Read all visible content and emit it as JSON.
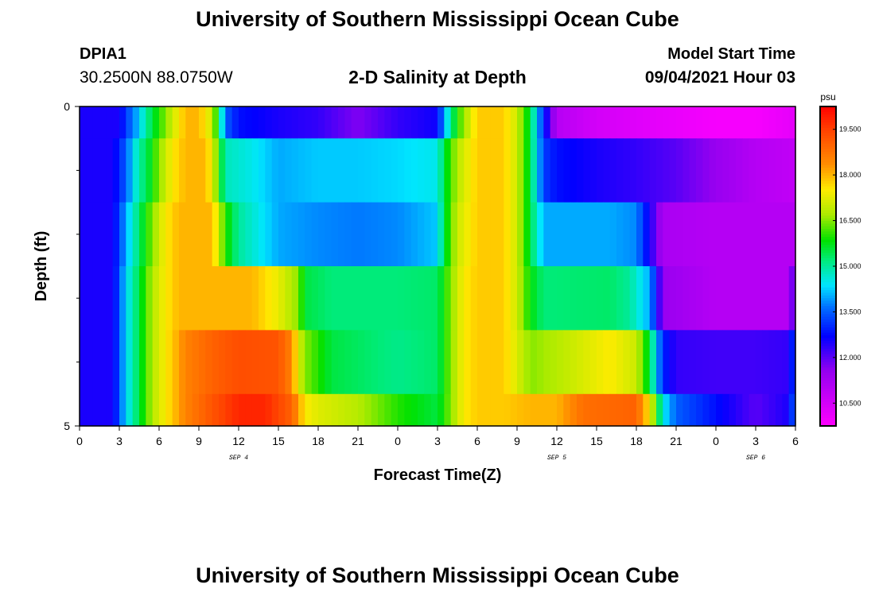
{
  "header": {
    "title": "University of Southern Mississippi Ocean Cube",
    "footer_title": "University of Southern Mississippi Ocean Cube",
    "station": "DPIA1",
    "coordinates": "30.2500N  88.0750W",
    "model_start_label": "Model Start Time",
    "model_start_value": "09/04/2021 Hour 03"
  },
  "chart_data": {
    "type": "heatmap",
    "title": "2-D Salinity at Depth",
    "xlabel": "Forecast Time(Z)",
    "ylabel": "Depth (ft)",
    "x_unit": "hours since 09/04/2021 00Z",
    "xlim": [
      0,
      54
    ],
    "ylim": [
      0,
      5
    ],
    "y_tick_labels": [
      {
        "value": 0,
        "label": "0"
      },
      {
        "value": 5,
        "label": "5"
      }
    ],
    "y_minor_ticks": [
      1,
      2,
      3,
      4
    ],
    "x_ticks": [
      0,
      3,
      6,
      9,
      12,
      15,
      18,
      21,
      24,
      27,
      30,
      33,
      36,
      39,
      42,
      45,
      48,
      51,
      54
    ],
    "x_tick_labels": [
      "0",
      "3",
      "6",
      "9",
      "12",
      "15",
      "18",
      "21",
      "0",
      "3",
      "6",
      "9",
      "12",
      "15",
      "18",
      "21",
      "0",
      "3",
      "6"
    ],
    "date_labels": [
      {
        "x": 12,
        "label": "SEP 4"
      },
      {
        "x": 36,
        "label": "SEP 5"
      },
      {
        "x": 51,
        "label": "SEP 6"
      }
    ],
    "colorbar": {
      "unit": "psu",
      "min": 9.75,
      "max": 20.25,
      "ticks": [
        10.5,
        12.0,
        13.5,
        15.0,
        16.5,
        18.0,
        19.5
      ],
      "tick_labels": [
        "10.500",
        "12.000",
        "13.500",
        "15.000",
        "16.500",
        "18.000",
        "19.500"
      ]
    },
    "layers": [
      {
        "depth_range": [
          0.0,
          0.5
        ],
        "values": [
          [
            0,
            12.5
          ],
          [
            1,
            12.5
          ],
          [
            3,
            12.5
          ],
          [
            3.5,
            13.2
          ],
          [
            4.5,
            14.2
          ],
          [
            5,
            15
          ],
          [
            6,
            16
          ],
          [
            7,
            17
          ],
          [
            8,
            18
          ],
          [
            9,
            18
          ],
          [
            10,
            17
          ],
          [
            10.5,
            15.5
          ],
          [
            11,
            13.5
          ],
          [
            12,
            12.8
          ],
          [
            15,
            12.5
          ],
          [
            18,
            12.3
          ],
          [
            21,
            11.7
          ],
          [
            24,
            12.3
          ],
          [
            27,
            12.6
          ],
          [
            27.5,
            14
          ],
          [
            28.5,
            16
          ],
          [
            30,
            17.8
          ],
          [
            32,
            17.8
          ],
          [
            33,
            17
          ],
          [
            34,
            15.5
          ],
          [
            35,
            13
          ],
          [
            36,
            11
          ],
          [
            39,
            10.5
          ],
          [
            42,
            10.3
          ],
          [
            45,
            10.1
          ],
          [
            48,
            9.9
          ],
          [
            51,
            9.9
          ],
          [
            54,
            10.2
          ]
        ]
      },
      {
        "depth_range": [
          0.5,
          1.5
        ],
        "values": [
          [
            0,
            12.5
          ],
          [
            2.5,
            12.5
          ],
          [
            3.5,
            13.5
          ],
          [
            4.5,
            15
          ],
          [
            5,
            15.3
          ],
          [
            6,
            16.5
          ],
          [
            7,
            17.5
          ],
          [
            8,
            18
          ],
          [
            9.5,
            18
          ],
          [
            10,
            17.3
          ],
          [
            10.5,
            16
          ],
          [
            11,
            14.8
          ],
          [
            13,
            14.5
          ],
          [
            15,
            14
          ],
          [
            18,
            14.2
          ],
          [
            21,
            14.2
          ],
          [
            24,
            14.3
          ],
          [
            27,
            14.5
          ],
          [
            27.5,
            15.5
          ],
          [
            28.5,
            16.8
          ],
          [
            30,
            17.8
          ],
          [
            32,
            17.8
          ],
          [
            33,
            17
          ],
          [
            34,
            15.5
          ],
          [
            35,
            13.2
          ],
          [
            36,
            12.8
          ],
          [
            39,
            12.5
          ],
          [
            42,
            12.3
          ],
          [
            45,
            12
          ],
          [
            48,
            11.5
          ],
          [
            51,
            11
          ],
          [
            54,
            10.8
          ]
        ]
      },
      {
        "depth_range": [
          1.5,
          2.5
        ],
        "values": [
          [
            0,
            12.5
          ],
          [
            2.5,
            12.5
          ],
          [
            3.5,
            14
          ],
          [
            4.5,
            15.3
          ],
          [
            5.5,
            16.5
          ],
          [
            6.5,
            17.5
          ],
          [
            7.5,
            18
          ],
          [
            10,
            18
          ],
          [
            10.5,
            17
          ],
          [
            11,
            16
          ],
          [
            12,
            15
          ],
          [
            15,
            14
          ],
          [
            18,
            13.8
          ],
          [
            21,
            13.7
          ],
          [
            24,
            13.8
          ],
          [
            27,
            14.2
          ],
          [
            27.5,
            15.5
          ],
          [
            28.5,
            17
          ],
          [
            30,
            17.8
          ],
          [
            32,
            17.8
          ],
          [
            33,
            17
          ],
          [
            34,
            15.5
          ],
          [
            35,
            14
          ],
          [
            40,
            14
          ],
          [
            42,
            13.8
          ],
          [
            43,
            12.5
          ],
          [
            44,
            11.2
          ],
          [
            48,
            11
          ],
          [
            51,
            11
          ],
          [
            54,
            11
          ]
        ]
      },
      {
        "depth_range": [
          2.5,
          3.5
        ],
        "values": [
          [
            0,
            12.5
          ],
          [
            2.5,
            12.5
          ],
          [
            3.5,
            14.3
          ],
          [
            4.5,
            15.5
          ],
          [
            5.5,
            16.8
          ],
          [
            6.5,
            17.5
          ],
          [
            7.5,
            18
          ],
          [
            13,
            18
          ],
          [
            15,
            17.3
          ],
          [
            16.5,
            16.5
          ],
          [
            17,
            15.5
          ],
          [
            19,
            15.2
          ],
          [
            24,
            15.2
          ],
          [
            27,
            15.3
          ],
          [
            28,
            16.5
          ],
          [
            29,
            17.5
          ],
          [
            30,
            17.8
          ],
          [
            32,
            17.8
          ],
          [
            33,
            17
          ],
          [
            34,
            15.8
          ],
          [
            35,
            15.2
          ],
          [
            40,
            15.3
          ],
          [
            41.5,
            15
          ],
          [
            43,
            14
          ],
          [
            44,
            11.5
          ],
          [
            48,
            11
          ],
          [
            51,
            11
          ],
          [
            53.5,
            11
          ],
          [
            54,
            12.5
          ]
        ]
      },
      {
        "depth_range": [
          3.5,
          4.5
        ],
        "values": [
          [
            0,
            12.5
          ],
          [
            2.5,
            12.5
          ],
          [
            3.5,
            14.3
          ],
          [
            4.5,
            15.5
          ],
          [
            5.5,
            16.8
          ],
          [
            6.5,
            17.5
          ],
          [
            8,
            18.5
          ],
          [
            10,
            19
          ],
          [
            12,
            19.3
          ],
          [
            15,
            19.2
          ],
          [
            16,
            18.5
          ],
          [
            16.5,
            17.2
          ],
          [
            17,
            16.5
          ],
          [
            19,
            15.5
          ],
          [
            24,
            15.1
          ],
          [
            27,
            15.3
          ],
          [
            28,
            16.5
          ],
          [
            29,
            17.5
          ],
          [
            30,
            17.8
          ],
          [
            32,
            17.8
          ],
          [
            34,
            16.5
          ],
          [
            36,
            16.8
          ],
          [
            40,
            17.5
          ],
          [
            42,
            17
          ],
          [
            43,
            15.5
          ],
          [
            44,
            13
          ],
          [
            45,
            12.3
          ],
          [
            48,
            12.2
          ],
          [
            51,
            12.2
          ],
          [
            53.5,
            12.3
          ],
          [
            54,
            13.5
          ]
        ]
      },
      {
        "depth_range": [
          4.5,
          5.0
        ],
        "values": [
          [
            0,
            12.5
          ],
          [
            2.5,
            12.5
          ],
          [
            3.5,
            14.3
          ],
          [
            4.5,
            15.5
          ],
          [
            5.5,
            16.8
          ],
          [
            6.5,
            17.5
          ],
          [
            8,
            18.5
          ],
          [
            10,
            19.2
          ],
          [
            12,
            19.8
          ],
          [
            14,
            19.8
          ],
          [
            16,
            19
          ],
          [
            17,
            17.5
          ],
          [
            18,
            17.2
          ],
          [
            21,
            16.8
          ],
          [
            24,
            16
          ],
          [
            27,
            15.5
          ],
          [
            28,
            16.5
          ],
          [
            29,
            17.5
          ],
          [
            30,
            17.8
          ],
          [
            32,
            17.8
          ],
          [
            34,
            18
          ],
          [
            36,
            18
          ],
          [
            38,
            18.8
          ],
          [
            42,
            19
          ],
          [
            43,
            17.5
          ],
          [
            44,
            14.5
          ],
          [
            45,
            13.5
          ],
          [
            48,
            12.8
          ],
          [
            51,
            12
          ],
          [
            53.5,
            12.5
          ],
          [
            54,
            13.8
          ]
        ]
      }
    ]
  }
}
